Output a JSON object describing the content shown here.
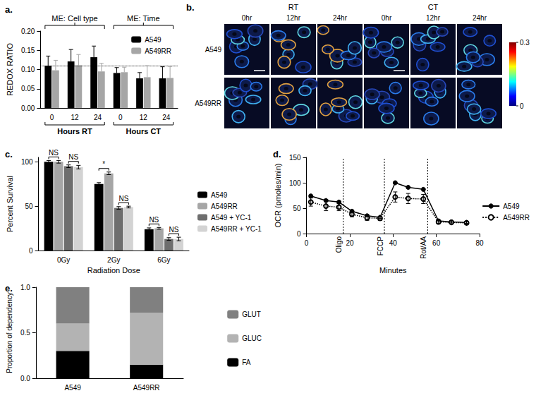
{
  "chart_data": [
    {
      "type": "bar",
      "label": "a.",
      "ylabel": "REDOX RATIO",
      "categories": [
        "0",
        "12",
        "24",
        "0",
        "12",
        "24"
      ],
      "group_labels": [
        "Hours RT",
        "Hours CT"
      ],
      "top_labels": [
        "ME: Cell type",
        "ME: Time"
      ],
      "ylim": [
        0,
        0.2
      ],
      "yticks": [
        {
          "value": 0,
          "label": "0.00"
        },
        {
          "value": 0.05,
          "label": "0.05"
        },
        {
          "value": 0.1,
          "label": "0.10"
        },
        {
          "value": 0.15,
          "label": "0.15"
        },
        {
          "value": 0.2,
          "label": "0.20"
        }
      ],
      "ref_line": 0.11,
      "legend": "upper right",
      "series": [
        {
          "name": "A549",
          "color": "#000000",
          "values": [
            0.11,
            0.121,
            0.132,
            0.091,
            0.077,
            0.077
          ],
          "errors": [
            0.025,
            0.031,
            0.029,
            0.014,
            0.015,
            0.03
          ]
        },
        {
          "name": "A549RR",
          "color": "#a6a6a6",
          "values": [
            0.098,
            0.111,
            0.095,
            0.093,
            0.08,
            0.078
          ],
          "errors": [
            0.026,
            0.028,
            0.021,
            0.013,
            0.03,
            0.03
          ]
        }
      ]
    },
    {
      "type": "image_grid",
      "label": "b.",
      "groups": [
        "RT",
        "CT"
      ],
      "columns": [
        "0hr",
        "12hr",
        "24hr"
      ],
      "rows": [
        "A549",
        "A549RR"
      ],
      "colorbar": {
        "range": [
          0,
          0.3
        ],
        "ticks": [
          0,
          0.3
        ]
      }
    },
    {
      "type": "bar",
      "label": "c.",
      "xlabel": "Radiation Dose",
      "ylabel": "Percent Survival",
      "categories": [
        "0Gy",
        "2Gy",
        "6Gy"
      ],
      "ylim": [
        0,
        105
      ],
      "yticks": [
        0,
        50,
        100
      ],
      "legend": "right",
      "series": [
        {
          "name": "A549",
          "color": "#000000",
          "values": [
            100,
            75,
            24
          ],
          "errors": [
            1.5,
            1.5,
            1.5
          ]
        },
        {
          "name": "A549RR",
          "color": "#a6a6a6",
          "values": [
            100,
            87,
            25
          ],
          "errors": [
            1.5,
            1.5,
            1
          ]
        },
        {
          "name": "A549 + YC-1",
          "color": "#6e6e6e",
          "values": [
            95,
            48,
            13
          ],
          "errors": [
            1.5,
            1.5,
            1.5
          ]
        },
        {
          "name": "A549RR + YC-1",
          "color": "#d3d3d3",
          "values": [
            94,
            49,
            13
          ],
          "errors": [
            2,
            1,
            2
          ]
        }
      ],
      "significance": [
        [
          "NS",
          "NS"
        ],
        [
          "*",
          "NS"
        ],
        [
          "NS",
          "NS"
        ]
      ]
    },
    {
      "type": "line",
      "label": "d.",
      "xlabel": "Minutes",
      "ylabel": "OCR (pmoles/min)",
      "x": [
        2,
        9,
        15,
        21,
        28,
        34,
        41,
        47,
        54,
        61,
        67,
        74
      ],
      "xlim": [
        0,
        80
      ],
      "xticks": [
        0,
        20,
        40,
        60,
        80
      ],
      "ylim": [
        0,
        150
      ],
      "yticks": [
        0,
        50,
        100,
        150
      ],
      "events": [
        {
          "x": 17,
          "label": "Oligo"
        },
        {
          "x": 36,
          "label": "FCCP"
        },
        {
          "x": 56,
          "label": "Rot/AA"
        }
      ],
      "legend": "right",
      "series": [
        {
          "name": "A549",
          "color": "#000000",
          "marker": "circle",
          "line_style": "solid",
          "values": [
            74,
            65,
            62,
            44,
            35,
            32,
            100,
            91,
            87,
            25,
            23,
            22
          ],
          "errors": [
            2,
            2,
            2,
            2,
            2,
            2,
            1,
            1,
            1,
            2,
            2,
            2
          ]
        },
        {
          "name": "A549RR",
          "color": "#000000",
          "marker": "emptyCircle",
          "line_style": "dotted",
          "values": [
            62,
            54,
            52,
            38,
            31,
            30,
            72,
            69,
            68,
            23,
            22,
            21
          ],
          "errors": [
            8,
            9,
            7,
            5,
            5,
            4,
            10,
            10,
            9,
            3,
            3,
            3
          ]
        }
      ]
    },
    {
      "type": "bar",
      "label": "e.",
      "stacked": true,
      "ylabel": "Proportion of dependency",
      "categories": [
        "A549",
        "A549RR"
      ],
      "ylim": [
        0,
        1
      ],
      "yticks": [
        {
          "value": 0,
          "label": "0.0"
        },
        {
          "value": 0.5,
          "label": "0.5"
        },
        {
          "value": 1,
          "label": "1.0"
        }
      ],
      "legend": "right",
      "series": [
        {
          "name": "FA",
          "color": "#000000",
          "values": [
            0.3,
            0.15
          ]
        },
        {
          "name": "GLUC",
          "color": "#b3b3b3",
          "values": [
            0.3,
            0.57
          ]
        },
        {
          "name": "GLUT",
          "color": "#808080",
          "values": [
            0.4,
            0.28
          ]
        }
      ]
    }
  ]
}
